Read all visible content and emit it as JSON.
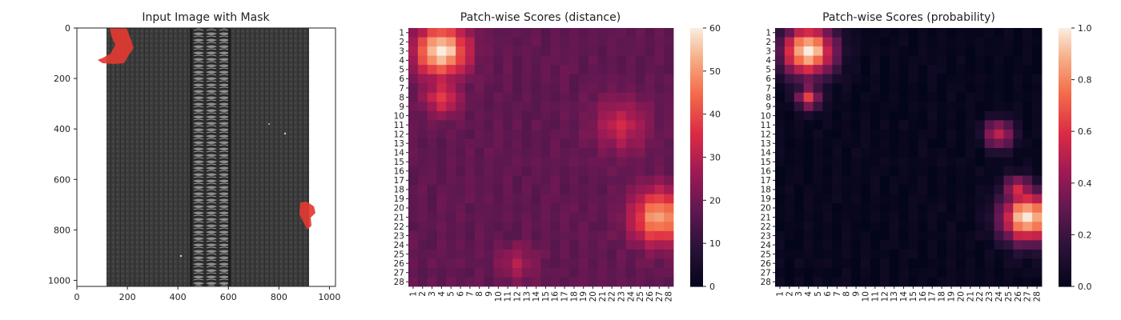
{
  "chart_data": [
    {
      "type": "image",
      "title": "Input Image with Mask",
      "xlim": [
        0,
        1024
      ],
      "ylim": [
        1024,
        0
      ],
      "xticks": [
        0,
        200,
        400,
        600,
        800,
        1000
      ],
      "yticks": [
        0,
        200,
        400,
        600,
        800,
        1000
      ],
      "content": {
        "object": "zipper",
        "mask_color": "#e23a32",
        "mask_regions": [
          {
            "name": "top-left defect",
            "x_range": [
              85,
              220
            ],
            "y_range": [
              0,
              140
            ]
          },
          {
            "name": "right defect",
            "x_range": [
              855,
              935
            ],
            "y_range": [
              660,
              790
            ]
          }
        ]
      }
    },
    {
      "type": "heatmap",
      "title": "Patch-wise Scores (distance)",
      "rows": 28,
      "cols": 28,
      "colormap": "rocket",
      "colorbar": {
        "min": 0,
        "max": 60,
        "ticks": [
          0,
          10,
          20,
          30,
          40,
          50,
          60
        ]
      },
      "baseline": 18,
      "hotspots": [
        {
          "row": 3,
          "col": 4,
          "value": 60,
          "sigma": 1.9
        },
        {
          "row": 8,
          "col": 4,
          "value": 38,
          "sigma": 1.3
        },
        {
          "row": 21,
          "col": 27,
          "value": 52,
          "sigma": 2.0
        },
        {
          "row": 11,
          "col": 23,
          "value": 33,
          "sigma": 2.0
        },
        {
          "row": 26,
          "col": 12,
          "value": 29,
          "sigma": 1.3
        }
      ]
    },
    {
      "type": "heatmap",
      "title": "Patch-wise Scores (probability)",
      "rows": 28,
      "cols": 28,
      "colormap": "rocket",
      "colorbar": {
        "min": 0.0,
        "max": 1.0,
        "ticks": [
          "0.0",
          "0.2",
          "0.4",
          "0.6",
          "0.8",
          "1.0"
        ]
      },
      "baseline": 0.02,
      "hotspots": [
        {
          "row": 3,
          "col": 4,
          "value": 1.0,
          "sigma": 1.9
        },
        {
          "row": 8,
          "col": 4,
          "value": 0.65,
          "sigma": 0.9
        },
        {
          "row": 21,
          "col": 27,
          "value": 1.0,
          "sigma": 1.9
        },
        {
          "row": 12,
          "col": 24,
          "value": 0.55,
          "sigma": 1.1
        },
        {
          "row": 18,
          "col": 26,
          "value": 0.6,
          "sigma": 1.0
        }
      ]
    }
  ]
}
